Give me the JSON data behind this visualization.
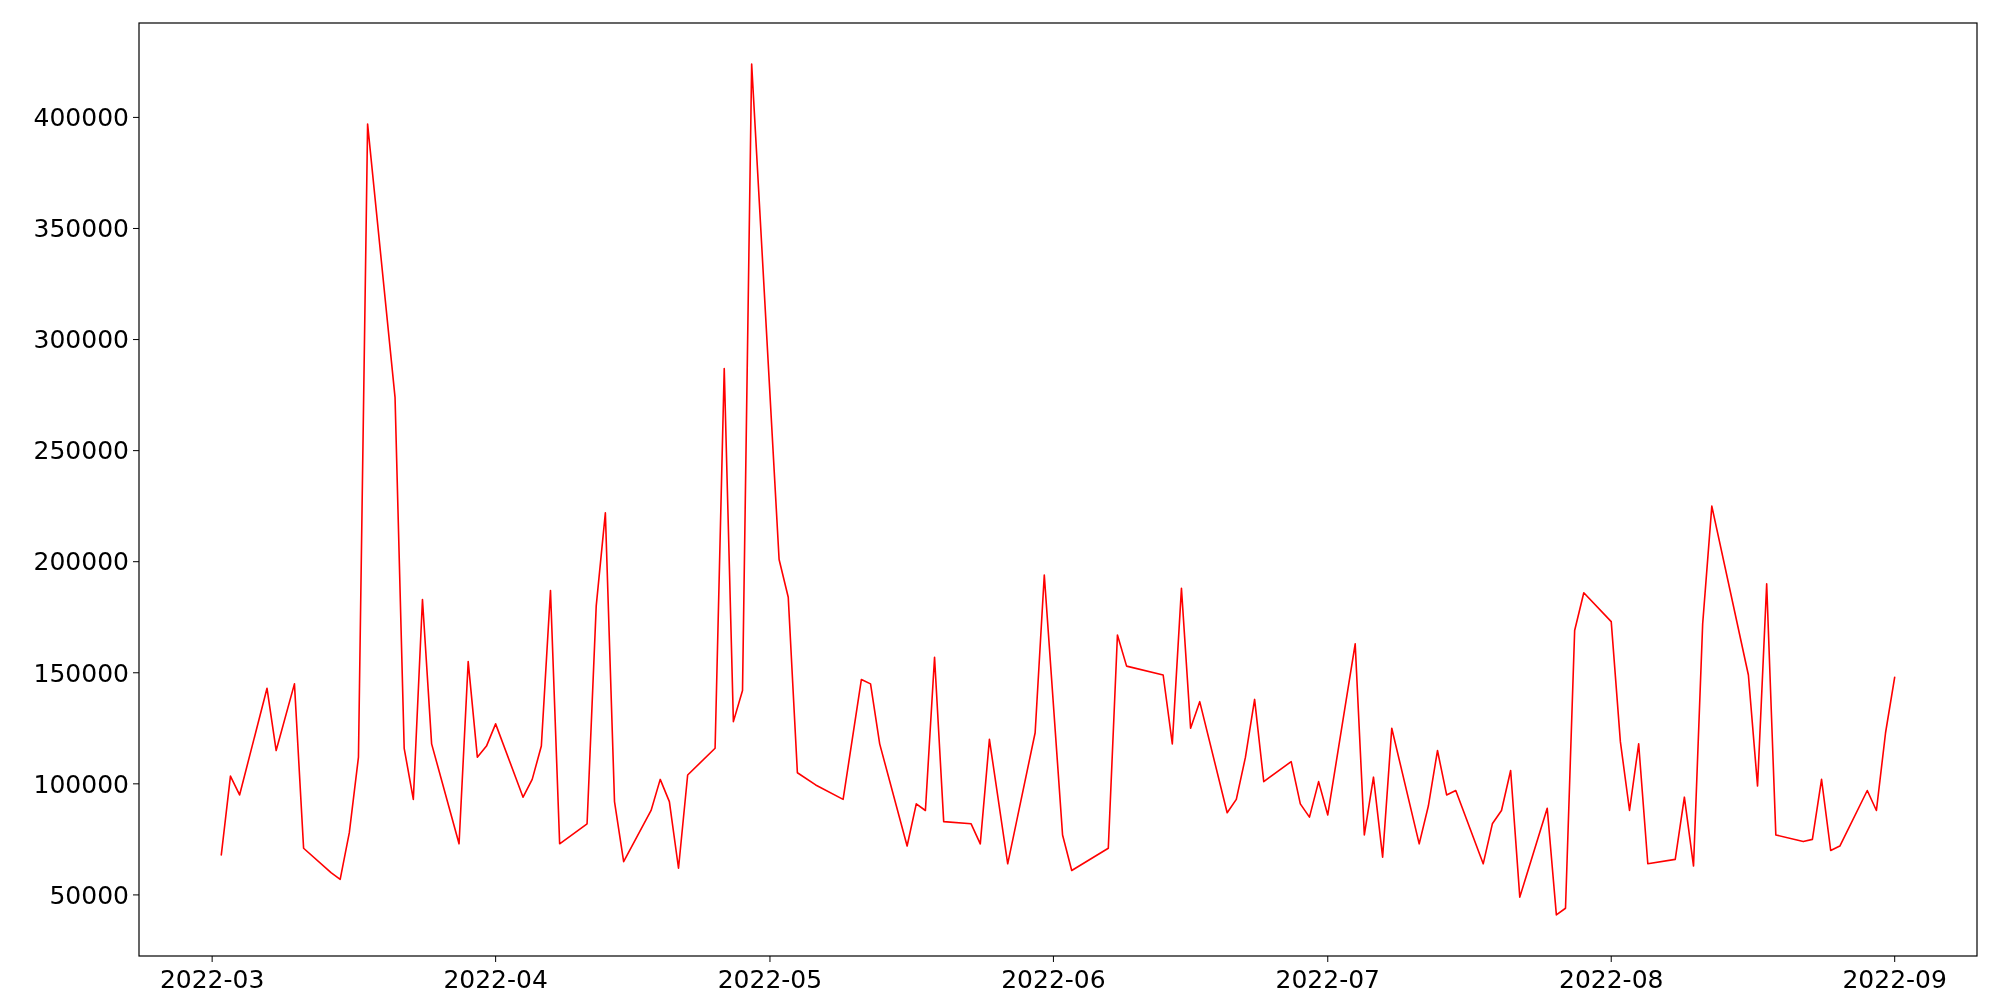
{
  "chart_data": {
    "type": "line",
    "x": [
      "2022-03-02",
      "2022-03-03",
      "2022-03-04",
      "2022-03-07",
      "2022-03-08",
      "2022-03-10",
      "2022-03-11",
      "2022-03-14",
      "2022-03-15",
      "2022-03-16",
      "2022-03-17",
      "2022-03-18",
      "2022-03-21",
      "2022-03-22",
      "2022-03-23",
      "2022-03-24",
      "2022-03-25",
      "2022-03-28",
      "2022-03-29",
      "2022-03-30",
      "2022-03-31",
      "2022-04-01",
      "2022-04-04",
      "2022-04-05",
      "2022-04-06",
      "2022-04-07",
      "2022-04-08",
      "2022-04-11",
      "2022-04-12",
      "2022-04-13",
      "2022-04-14",
      "2022-04-15",
      "2022-04-18",
      "2022-04-19",
      "2022-04-20",
      "2022-04-21",
      "2022-04-22",
      "2022-04-25",
      "2022-04-26",
      "2022-04-27",
      "2022-04-28",
      "2022-04-29",
      "2022-05-02",
      "2022-05-03",
      "2022-05-04",
      "2022-05-06",
      "2022-05-09",
      "2022-05-11",
      "2022-05-12",
      "2022-05-13",
      "2022-05-16",
      "2022-05-17",
      "2022-05-18",
      "2022-05-19",
      "2022-05-20",
      "2022-05-23",
      "2022-05-24",
      "2022-05-25",
      "2022-05-27",
      "2022-05-30",
      "2022-05-31",
      "2022-06-02",
      "2022-06-03",
      "2022-06-07",
      "2022-06-08",
      "2022-06-09",
      "2022-06-13",
      "2022-06-14",
      "2022-06-15",
      "2022-06-16",
      "2022-06-17",
      "2022-06-20",
      "2022-06-21",
      "2022-06-22",
      "2022-06-23",
      "2022-06-24",
      "2022-06-27",
      "2022-06-28",
      "2022-06-29",
      "2022-06-30",
      "2022-07-01",
      "2022-07-04",
      "2022-07-05",
      "2022-07-06",
      "2022-07-07",
      "2022-07-08",
      "2022-07-11",
      "2022-07-12",
      "2022-07-13",
      "2022-07-14",
      "2022-07-15",
      "2022-07-18",
      "2022-07-19",
      "2022-07-20",
      "2022-07-21",
      "2022-07-22",
      "2022-07-25",
      "2022-07-26",
      "2022-07-27",
      "2022-07-28",
      "2022-07-29",
      "2022-08-01",
      "2022-08-02",
      "2022-08-03",
      "2022-08-04",
      "2022-08-05",
      "2022-08-08",
      "2022-08-09",
      "2022-08-10",
      "2022-08-11",
      "2022-08-12",
      "2022-08-16",
      "2022-08-17",
      "2022-08-18",
      "2022-08-19",
      "2022-08-22",
      "2022-08-23",
      "2022-08-24",
      "2022-08-25",
      "2022-08-26",
      "2022-08-29",
      "2022-08-30",
      "2022-08-31",
      "2022-09-01"
    ],
    "series": [
      {
        "color": "#ff0000",
        "values": [
          68000,
          103500,
          95000,
          143000,
          115000,
          145000,
          71000,
          60000,
          57000,
          78000,
          112000,
          397000,
          274000,
          116000,
          93000,
          183000,
          118000,
          73000,
          155000,
          112000,
          117000,
          127000,
          94000,
          102000,
          117000,
          187000,
          73000,
          82000,
          180000,
          222000,
          92000,
          65000,
          88000,
          102000,
          92000,
          62000,
          104000,
          116000,
          287000,
          128000,
          142000,
          424000,
          201000,
          184000,
          105000,
          99500,
          93000,
          147000,
          145000,
          118000,
          72000,
          91000,
          88000,
          157000,
          83000,
          82000,
          73000,
          120000,
          64000,
          123000,
          194000,
          77000,
          61000,
          71000,
          167000,
          153000,
          149000,
          118000,
          188000,
          125000,
          137000,
          87000,
          93000,
          112000,
          138000,
          101000,
          110000,
          91000,
          85000,
          101000,
          86000,
          163000,
          77000,
          103000,
          67000,
          125000,
          73000,
          90000,
          115000,
          95000,
          97000,
          64000,
          82000,
          88000,
          106000,
          49000,
          89000,
          41000,
          44000,
          169000,
          186000,
          173000,
          119000,
          88000,
          118000,
          64000,
          66000,
          94000,
          63000,
          172000,
          225000,
          149000,
          99000,
          190000,
          77000,
          74000,
          75000,
          102000,
          70000,
          72000,
          97000,
          88000,
          123000,
          148000
        ]
      }
    ],
    "xlim": [
      "2022-02-21",
      "2022-09-10"
    ],
    "xticks": [
      {
        "value": "2022-03-01",
        "label": "2022-03"
      },
      {
        "value": "2022-04-01",
        "label": "2022-04"
      },
      {
        "value": "2022-05-01",
        "label": "2022-05"
      },
      {
        "value": "2022-06-01",
        "label": "2022-06"
      },
      {
        "value": "2022-07-01",
        "label": "2022-07"
      },
      {
        "value": "2022-08-01",
        "label": "2022-08"
      },
      {
        "value": "2022-09-01",
        "label": "2022-09"
      }
    ],
    "ylim": [
      22500,
      442500
    ],
    "yticks": [
      50000,
      100000,
      150000,
      200000,
      250000,
      300000,
      350000,
      400000
    ],
    "grid": false,
    "marker": "none",
    "line_style": "solid"
  }
}
